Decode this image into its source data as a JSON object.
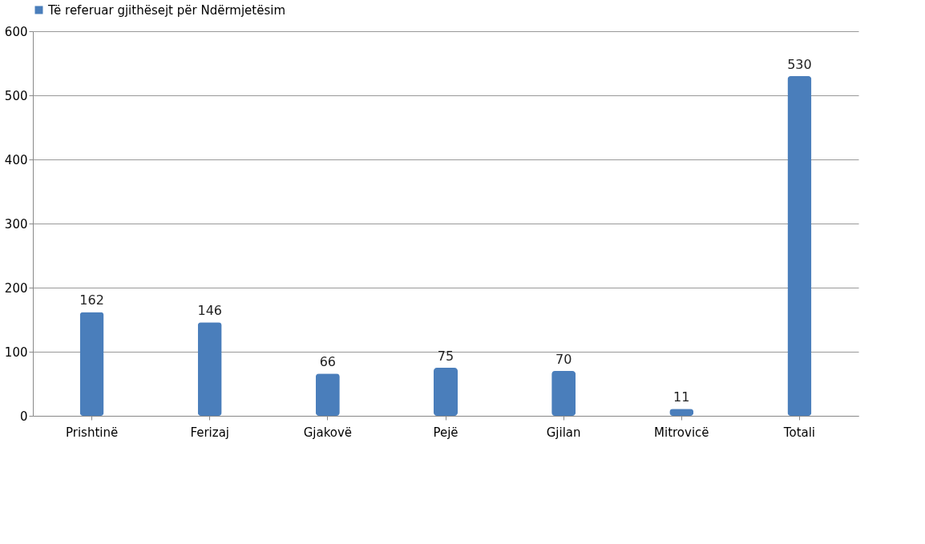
{
  "chart_data": {
    "type": "bar",
    "categories": [
      "Prishtinë",
      "Ferizaj",
      "Gjakovë",
      "Pejë",
      "Gjilan",
      "Mitrovicë",
      "Totali"
    ],
    "series": [
      {
        "name": "Të referuar gjithësejt për Ndërmjetësim",
        "color": "#4a7ebb",
        "values": [
          162,
          146,
          66,
          75,
          70,
          11,
          530
        ]
      }
    ],
    "ylim": [
      0,
      600
    ],
    "yticks": [
      0,
      100,
      200,
      300,
      400,
      500,
      600
    ],
    "grid": "y",
    "legend": "top",
    "data_labels": true
  }
}
